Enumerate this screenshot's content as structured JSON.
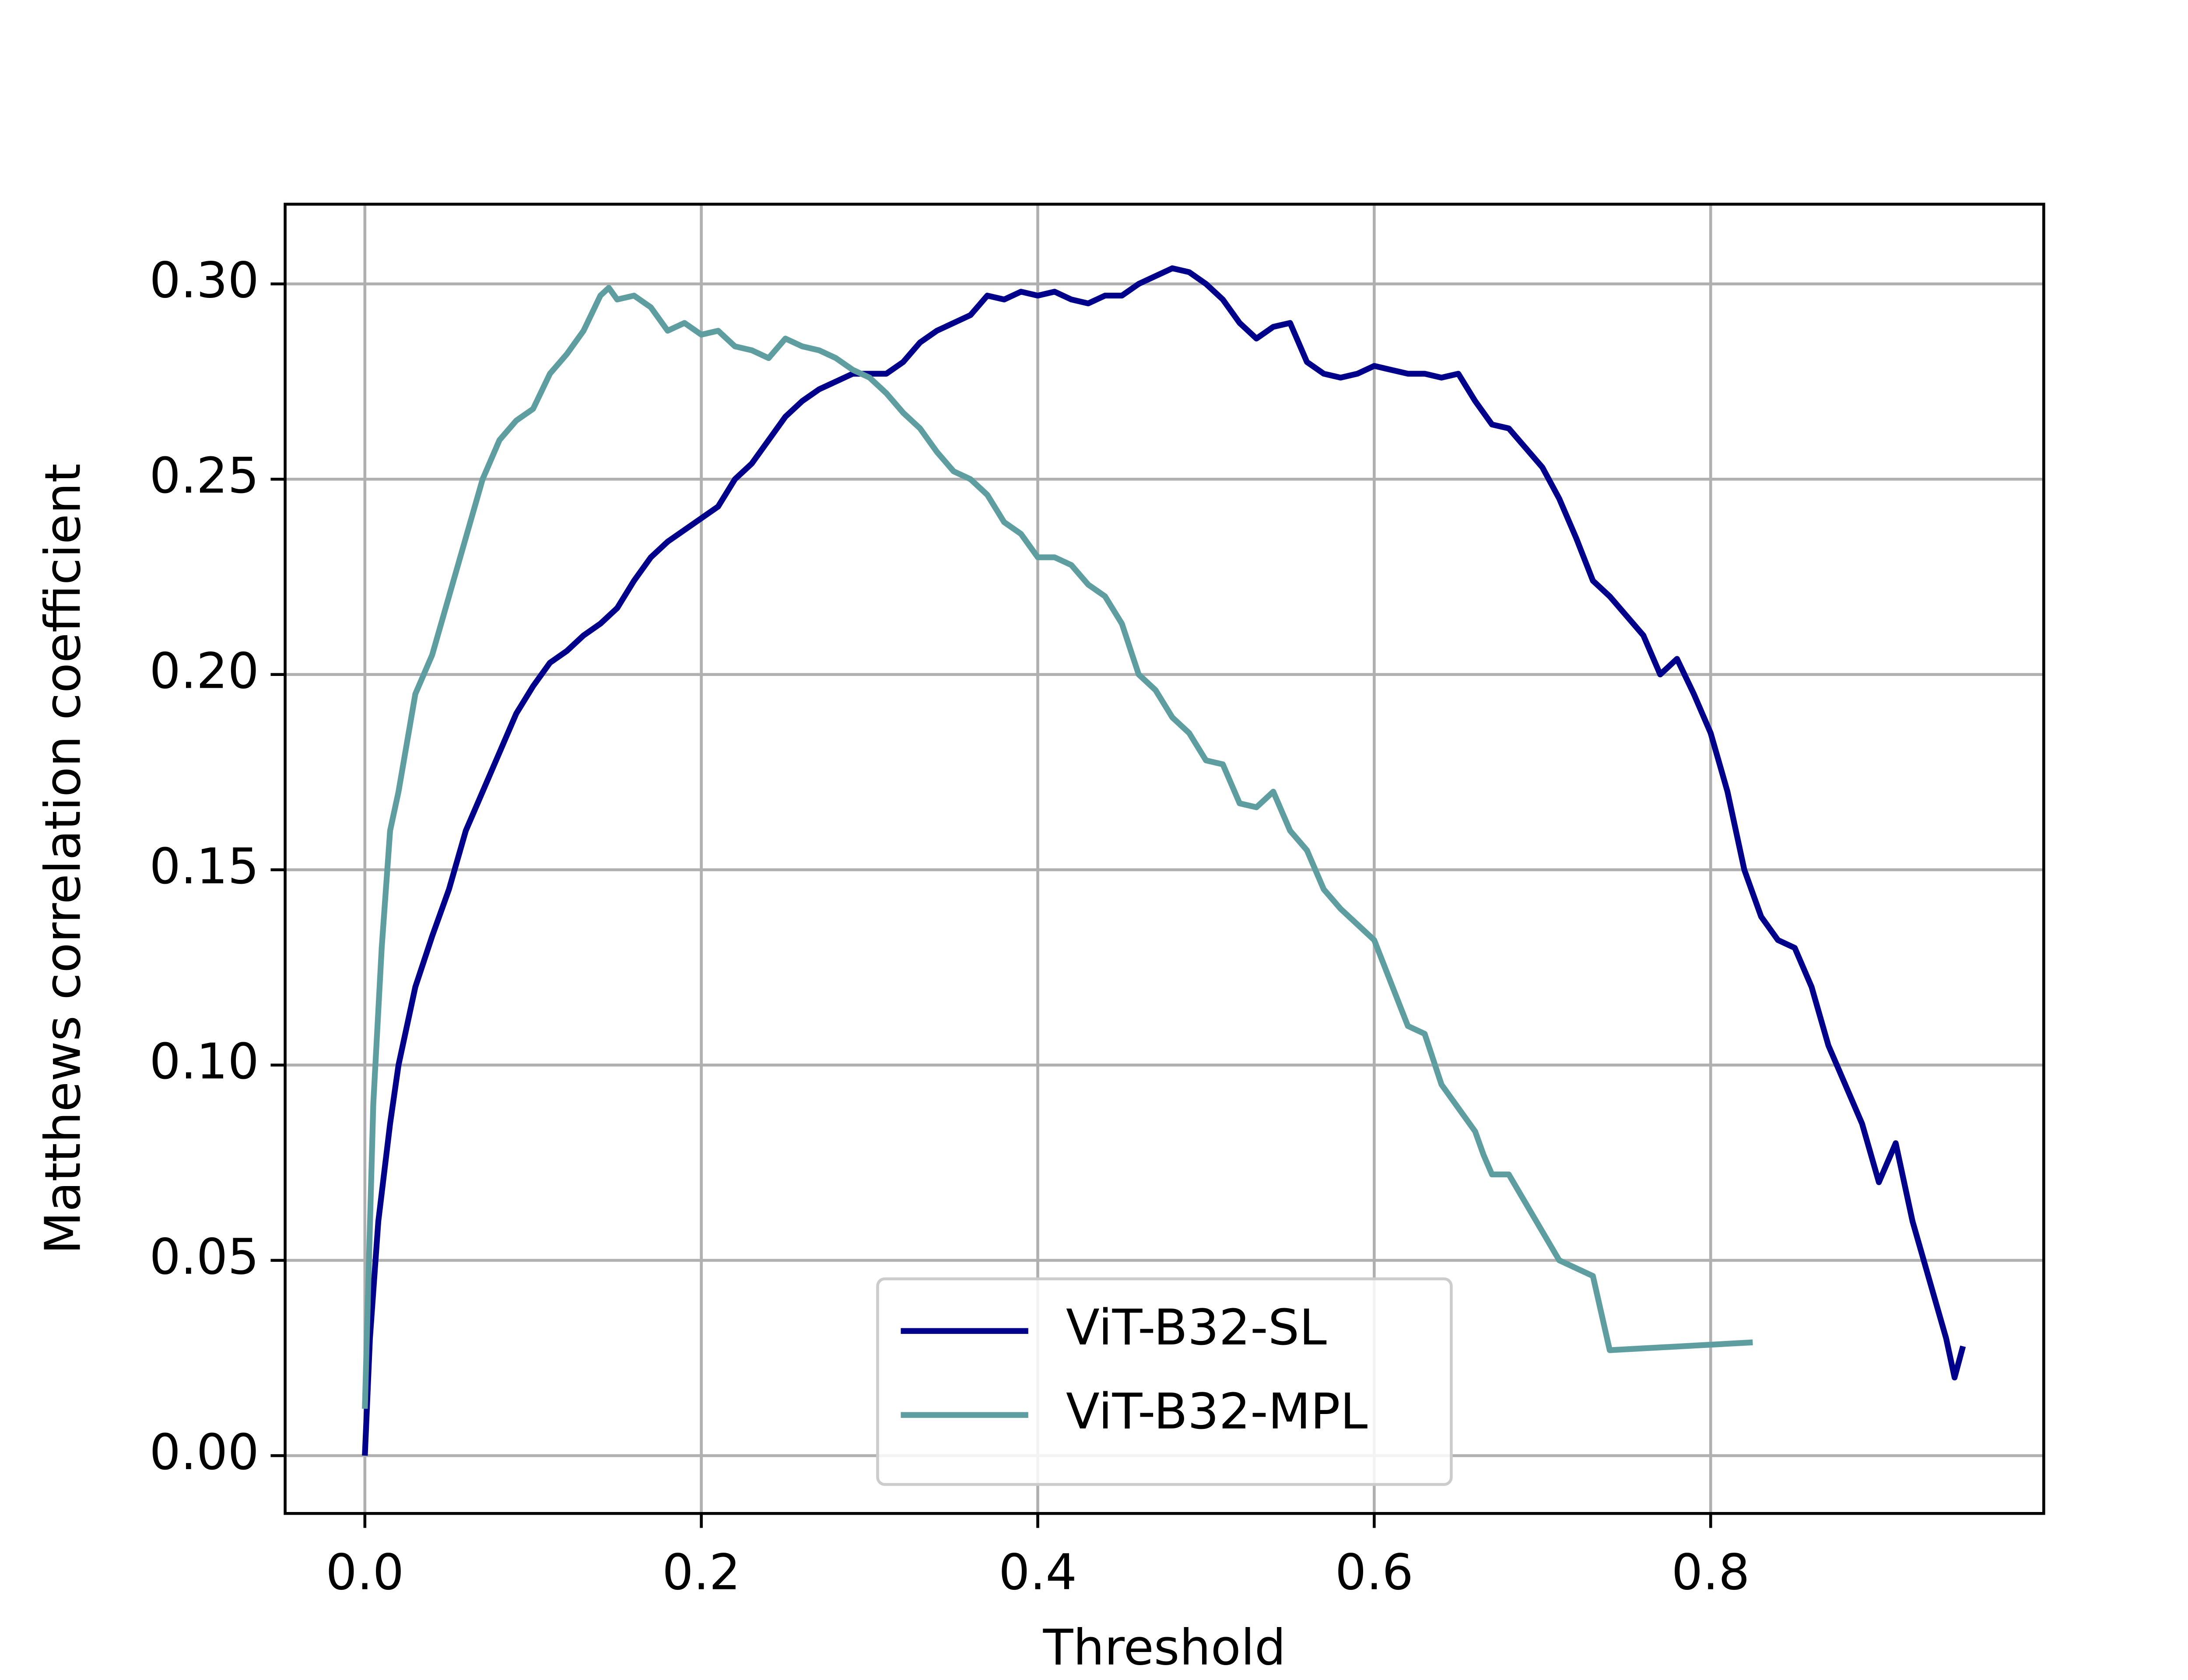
{
  "chart_data": {
    "type": "line",
    "xlabel": "Threshold",
    "ylabel": "Matthews correlation coefficient",
    "xlim": [
      -0.0474,
      0.998
    ],
    "ylim": [
      -0.0148,
      0.3204
    ],
    "xticks": [
      {
        "value": 0,
        "label": "0.0"
      },
      0.2,
      0.4,
      0.6,
      0.8
    ],
    "yticks": [
      {
        "value": 0,
        "label": "0.00"
      },
      0.05,
      {
        "value": 0.1,
        "label": "0.10"
      },
      0.15,
      {
        "value": 0.2,
        "label": "0.20"
      },
      0.25,
      {
        "value": 0.3,
        "label": "0.30"
      }
    ],
    "grid": true,
    "legend": "lower center",
    "series": [
      {
        "name": "ViT-B32-SL",
        "color": "#00008b",
        "x": [
          0,
          0.003,
          0.008,
          0.015,
          0.02,
          0.03,
          0.04,
          0.05,
          0.06,
          0.07,
          0.08,
          0.09,
          0.1,
          0.11,
          0.12,
          0.13,
          0.14,
          0.15,
          0.16,
          0.17,
          0.18,
          0.19,
          0.2,
          0.21,
          0.22,
          0.23,
          0.24,
          0.25,
          0.26,
          0.27,
          0.28,
          0.29,
          0.3,
          0.31,
          0.32,
          0.33,
          0.34,
          0.35,
          0.36,
          0.37,
          0.38,
          0.39,
          0.4,
          0.41,
          0.42,
          0.43,
          0.44,
          0.45,
          0.46,
          0.47,
          0.48,
          0.49,
          0.5,
          0.51,
          0.52,
          0.53,
          0.54,
          0.55,
          0.56,
          0.57,
          0.58,
          0.59,
          0.6,
          0.61,
          0.62,
          0.63,
          0.64,
          0.65,
          0.66,
          0.67,
          0.68,
          0.69,
          0.7,
          0.71,
          0.72,
          0.73,
          0.74,
          0.75,
          0.76,
          0.77,
          0.78,
          0.79,
          0.8,
          0.81,
          0.82,
          0.83,
          0.84,
          0.85,
          0.86,
          0.87,
          0.88,
          0.89,
          0.9,
          0.91,
          0.92,
          0.93,
          0.94,
          0.945,
          0.95
        ],
        "values": [
          0,
          0.03,
          0.06,
          0.085,
          0.1,
          0.12,
          0.133,
          0.145,
          0.16,
          0.17,
          0.18,
          0.19,
          0.197,
          0.203,
          0.206,
          0.21,
          0.213,
          0.217,
          0.224,
          0.23,
          0.234,
          0.237,
          0.24,
          0.243,
          0.25,
          0.254,
          0.26,
          0.266,
          0.27,
          0.273,
          0.275,
          0.277,
          0.277,
          0.277,
          0.28,
          0.285,
          0.288,
          0.29,
          0.292,
          0.297,
          0.296,
          0.298,
          0.297,
          0.298,
          0.296,
          0.295,
          0.297,
          0.297,
          0.3,
          0.302,
          0.304,
          0.303,
          0.3,
          0.296,
          0.29,
          0.286,
          0.289,
          0.29,
          0.28,
          0.277,
          0.276,
          0.277,
          0.279,
          0.278,
          0.277,
          0.277,
          0.276,
          0.277,
          0.27,
          0.264,
          0.263,
          0.258,
          0.253,
          0.245,
          0.235,
          0.224,
          0.22,
          0.215,
          0.21,
          0.2,
          0.204,
          0.195,
          0.185,
          0.17,
          0.15,
          0.138,
          0.132,
          0.13,
          0.12,
          0.105,
          0.095,
          0.085,
          0.07,
          0.08,
          0.06,
          0.045,
          0.03,
          0.02,
          0.028
        ]
      },
      {
        "name": "ViT-B32-MPL",
        "color": "#5f9ea0",
        "x": [
          0,
          0.005,
          0.01,
          0.015,
          0.02,
          0.03,
          0.04,
          0.05,
          0.06,
          0.07,
          0.08,
          0.09,
          0.1,
          0.11,
          0.12,
          0.13,
          0.14,
          0.145,
          0.15,
          0.16,
          0.17,
          0.18,
          0.19,
          0.2,
          0.21,
          0.22,
          0.23,
          0.24,
          0.25,
          0.26,
          0.27,
          0.28,
          0.29,
          0.3,
          0.31,
          0.32,
          0.33,
          0.34,
          0.35,
          0.36,
          0.37,
          0.38,
          0.39,
          0.4,
          0.41,
          0.42,
          0.43,
          0.44,
          0.45,
          0.46,
          0.47,
          0.48,
          0.49,
          0.5,
          0.51,
          0.52,
          0.53,
          0.54,
          0.55,
          0.56,
          0.57,
          0.58,
          0.59,
          0.6,
          0.62,
          0.63,
          0.64,
          0.66,
          0.665,
          0.67,
          0.68,
          0.71,
          0.73,
          0.74,
          0.825
        ],
        "values": [
          0.012,
          0.09,
          0.13,
          0.16,
          0.17,
          0.195,
          0.205,
          0.22,
          0.235,
          0.25,
          0.26,
          0.265,
          0.268,
          0.277,
          0.282,
          0.288,
          0.297,
          0.299,
          0.296,
          0.297,
          0.294,
          0.288,
          0.29,
          0.287,
          0.288,
          0.284,
          0.283,
          0.281,
          0.286,
          0.284,
          0.283,
          0.281,
          0.278,
          0.276,
          0.272,
          0.267,
          0.263,
          0.257,
          0.252,
          0.25,
          0.246,
          0.239,
          0.236,
          0.23,
          0.23,
          0.228,
          0.223,
          0.22,
          0.213,
          0.2,
          0.196,
          0.189,
          0.185,
          0.178,
          0.177,
          0.167,
          0.166,
          0.17,
          0.16,
          0.155,
          0.145,
          0.14,
          0.136,
          0.132,
          0.11,
          0.108,
          0.095,
          0.083,
          0.077,
          0.072,
          0.072,
          0.05,
          0.046,
          0.027,
          0.029
        ]
      }
    ]
  }
}
